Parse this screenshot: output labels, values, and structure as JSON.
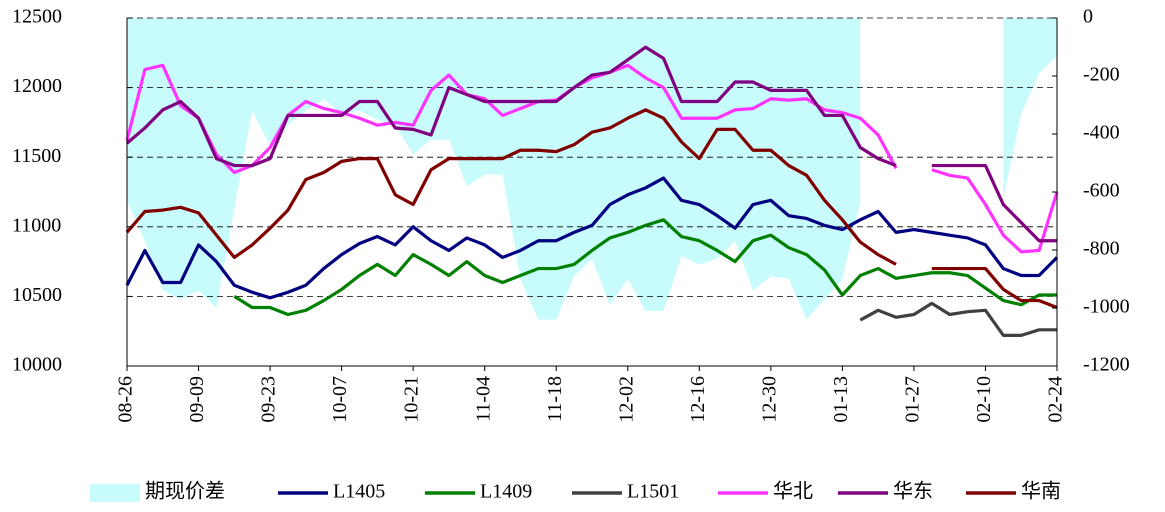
{
  "chart_data": {
    "type": "line",
    "categories": [
      "08-26",
      null,
      null,
      null,
      "09-09",
      null,
      null,
      null,
      "09-23",
      null,
      null,
      null,
      "10-07",
      null,
      null,
      null,
      "10-21",
      null,
      null,
      null,
      "11-04",
      null,
      null,
      null,
      "11-18",
      null,
      null,
      null,
      "12-02",
      null,
      null,
      null,
      "12-16",
      null,
      null,
      null,
      "12-30",
      null,
      null,
      null,
      "01-13",
      null,
      null,
      null,
      "01-27",
      null,
      null,
      null,
      "02-10",
      null,
      null,
      null,
      "02-24"
    ],
    "series": [
      {
        "name": "期现价差",
        "type": "area",
        "axis": "y2",
        "color": "#c8fbfb",
        "values": [
          -630,
          -770,
          -940,
          -970,
          -940,
          -1000,
          -660,
          -320,
          -440,
          -370,
          -320,
          -280,
          -330,
          -320,
          -350,
          -370,
          -470,
          -420,
          -420,
          -580,
          -540,
          -540,
          -900,
          -1040,
          -1040,
          -890,
          -830,
          -990,
          -900,
          -1010,
          -1010,
          -820,
          -850,
          -830,
          -770,
          -940,
          -890,
          -900,
          -1040,
          -970,
          -900,
          -630,
          null,
          null,
          null,
          null,
          null,
          null,
          null,
          -620,
          -330,
          -190,
          -130
        ]
      },
      {
        "name": "L1405",
        "color": "#000080",
        "values": [
          10580,
          10830,
          10600,
          10600,
          10870,
          10750,
          10580,
          10530,
          10490,
          10530,
          10580,
          10700,
          10800,
          10880,
          10930,
          10870,
          11000,
          10900,
          10830,
          10920,
          10870,
          10780,
          10830,
          10900,
          10900,
          10960,
          11010,
          11160,
          11230,
          11280,
          11350,
          11190,
          11160,
          11080,
          10990,
          11160,
          11190,
          11080,
          11060,
          11010,
          10980,
          11050,
          11110,
          10960,
          10980,
          10960,
          10940,
          10920,
          10870,
          10700,
          10650,
          10650,
          10780
        ]
      },
      {
        "name": "L1409",
        "color": "#008000",
        "values": [
          null,
          null,
          null,
          null,
          null,
          null,
          10500,
          10420,
          10420,
          10370,
          10400,
          10470,
          10550,
          10650,
          10730,
          10650,
          10800,
          10730,
          10650,
          10750,
          10650,
          10600,
          10650,
          10700,
          10700,
          10730,
          10830,
          10920,
          10960,
          11010,
          11050,
          10930,
          10900,
          10830,
          10750,
          10900,
          10940,
          10850,
          10800,
          10690,
          10510,
          10650,
          10700,
          10630,
          10650,
          10670,
          10670,
          10650,
          10560,
          10470,
          10440,
          10510,
          10510
        ]
      },
      {
        "name": "L1501",
        "color": "#404040",
        "values": [
          null,
          null,
          null,
          null,
          null,
          null,
          null,
          null,
          null,
          null,
          null,
          null,
          null,
          null,
          null,
          null,
          null,
          null,
          null,
          null,
          null,
          null,
          null,
          null,
          null,
          null,
          null,
          null,
          null,
          null,
          null,
          null,
          null,
          null,
          null,
          null,
          null,
          null,
          null,
          null,
          null,
          10330,
          10400,
          10350,
          10370,
          10450,
          10370,
          10390,
          10400,
          10220,
          10220,
          10260,
          10260
        ]
      },
      {
        "name": "华北",
        "color": "#ff33ff",
        "values": [
          11620,
          12130,
          12160,
          11870,
          11780,
          11520,
          11390,
          11440,
          11570,
          11800,
          11900,
          11850,
          11820,
          11780,
          11730,
          11750,
          11730,
          11980,
          12090,
          11950,
          11920,
          11800,
          11850,
          11900,
          11910,
          12000,
          12070,
          12110,
          12160,
          12070,
          12000,
          11780,
          11780,
          11780,
          11840,
          11850,
          11920,
          11910,
          11920,
          11840,
          11820,
          11780,
          11660,
          11420,
          null,
          11410,
          11370,
          11350,
          11160,
          10940,
          10820,
          10830,
          11250
        ]
      },
      {
        "name": "华东",
        "color": "#800080",
        "values": [
          11600,
          11710,
          11840,
          11900,
          11780,
          11490,
          11440,
          11440,
          11490,
          11800,
          11800,
          11800,
          11800,
          11900,
          11900,
          11710,
          11700,
          11660,
          12000,
          11950,
          11900,
          11900,
          11900,
          11900,
          11900,
          12000,
          12090,
          12110,
          12200,
          12290,
          12210,
          11900,
          11900,
          11900,
          12040,
          12040,
          11980,
          11980,
          11980,
          11800,
          11800,
          11570,
          11490,
          11440,
          null,
          11440,
          11440,
          11440,
          11440,
          11160,
          11030,
          10900,
          10900
        ]
      },
      {
        "name": "华南",
        "color": "#800000",
        "values": [
          10960,
          11110,
          11120,
          11140,
          11100,
          10940,
          10780,
          10870,
          10990,
          11120,
          11340,
          11390,
          11470,
          11490,
          11490,
          11230,
          11160,
          11410,
          11490,
          11490,
          11490,
          11490,
          11550,
          11550,
          11540,
          11590,
          11680,
          11710,
          11780,
          11840,
          11780,
          11610,
          11490,
          11700,
          11700,
          11550,
          11550,
          11440,
          11370,
          11190,
          11050,
          10890,
          10800,
          10730,
          null,
          10700,
          10700,
          10700,
          10700,
          10550,
          10470,
          10470,
          10420
        ]
      }
    ],
    "ylim": [
      10000,
      12500
    ],
    "yticks": [
      10000,
      10500,
      11000,
      11500,
      12000,
      12500
    ],
    "y2lim": [
      -1200,
      0
    ],
    "y2ticks": [
      -1200,
      -1000,
      -800,
      -600,
      -400,
      -200,
      0
    ],
    "grid": true
  }
}
